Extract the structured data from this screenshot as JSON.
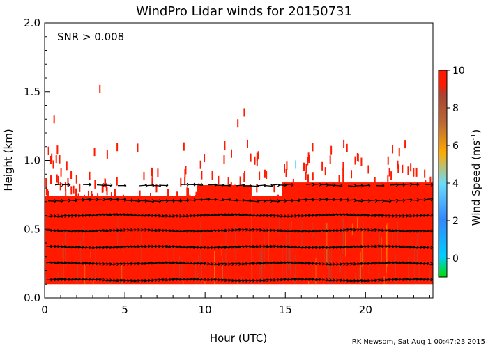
{
  "chart_data": {
    "type": "heatmap",
    "title": "WindPro Lidar winds for 20150731",
    "annotation": "SNR > 0.008",
    "xlabel": "Hour (UTC)",
    "ylabel": "Height (km)",
    "xlim": [
      0,
      24.2
    ],
    "ylim": [
      0.0,
      2.0
    ],
    "x_ticks": [
      0,
      5,
      10,
      15,
      20
    ],
    "y_ticks": [
      0.0,
      0.5,
      1.0,
      1.5,
      2.0
    ],
    "colorbar": {
      "label_main": "Wind Speed (ms",
      "label_sup": "-1",
      "label_end": ")",
      "range": [
        -1,
        10
      ],
      "ticks": [
        0,
        2,
        4,
        6,
        8,
        10
      ],
      "colors": [
        "#00dd00",
        "#00ccff",
        "#3388ff",
        "#ffaa00",
        "#aa5544",
        "#ff1a00"
      ]
    },
    "colors": {
      "fill": "#ff1a00",
      "streak": "#aa5544",
      "arrow": "#000000"
    },
    "filled_region": [
      {
        "x0": 0.0,
        "x1": 9.5,
        "y0": 0.1,
        "y1": 0.74
      },
      {
        "x0": 9.5,
        "x1": 12.9,
        "y0": 0.1,
        "y1": 0.82
      },
      {
        "x0": 12.9,
        "x1": 14.8,
        "y0": 0.1,
        "y1": 0.74
      },
      {
        "x0": 14.8,
        "x1": 24.2,
        "y0": 0.1,
        "y1": 0.84
      }
    ],
    "arrow_rows": [
      0.13,
      0.25,
      0.37,
      0.49,
      0.6,
      0.71,
      0.82
    ],
    "footer": "RK Newsom, Sat Aug  1 00:47:23 2015"
  }
}
